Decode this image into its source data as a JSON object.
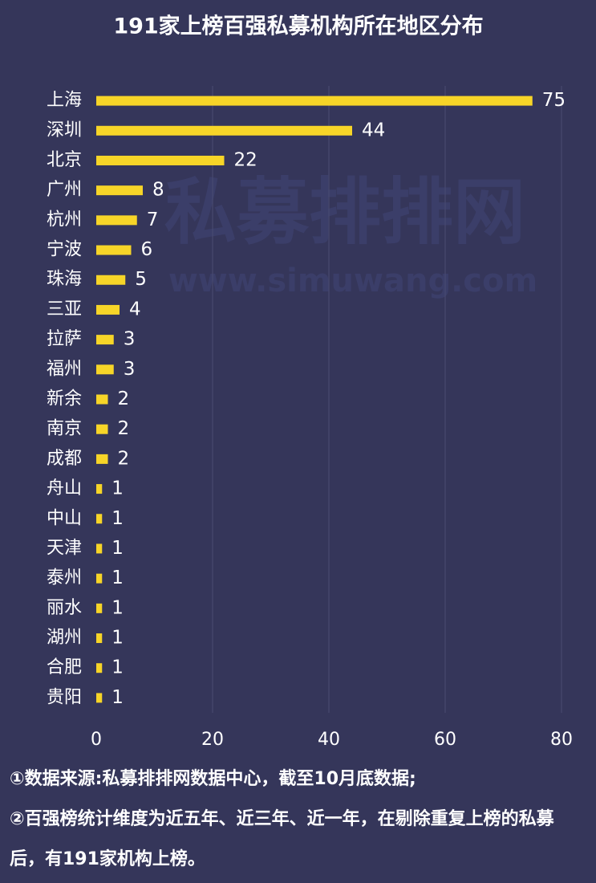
{
  "chart_data": {
    "type": "bar",
    "orientation": "horizontal",
    "title": "191家上榜百强私募机构所在地区分布",
    "categories": [
      "上海",
      "深圳",
      "北京",
      "广州",
      "杭州",
      "宁波",
      "珠海",
      "三亚",
      "拉萨",
      "福州",
      "新余",
      "南京",
      "成都",
      "舟山",
      "中山",
      "天津",
      "泰州",
      "丽水",
      "湖州",
      "合肥",
      "贵阳"
    ],
    "values": [
      75,
      44,
      22,
      8,
      7,
      6,
      5,
      4,
      3,
      3,
      2,
      2,
      2,
      1,
      1,
      1,
      1,
      1,
      1,
      1,
      1
    ],
    "color": "#f7d528",
    "xlim": [
      0,
      80
    ],
    "xticks": [
      0,
      20,
      40,
      60,
      80
    ],
    "grid": true,
    "watermark": [
      "私募排排网",
      "www.simuwang.com"
    ],
    "notes": [
      "①数据来源:私募排排网数据中心，截至10月底数据;",
      "②百强榜统计维度为近五年、近三年、近一年，在剔除重复上榜的私募后，有191家机构上榜。"
    ]
  }
}
